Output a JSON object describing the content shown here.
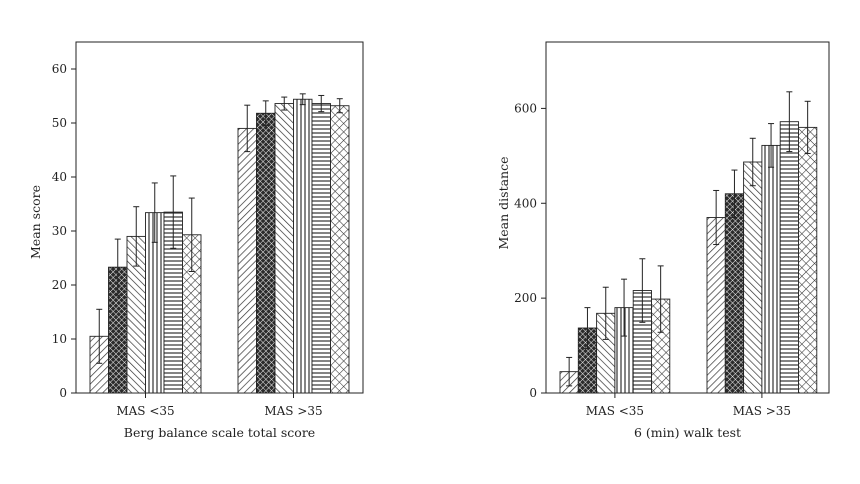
{
  "chart_data": [
    {
      "type": "bar",
      "xlabel": "Berg balance scale total score",
      "ylabel": "Mean score",
      "ylim": [
        0,
        65
      ],
      "yticks": [
        0,
        10,
        20,
        30,
        40,
        50,
        60
      ],
      "grid": false,
      "categories": [
        "MAS <35",
        "MAS >35"
      ],
      "series": [
        {
          "pattern": "diag-right",
          "values": [
            10.5,
            49.0
          ],
          "errors": [
            5.0,
            4.3
          ]
        },
        {
          "pattern": "dense-cross",
          "values": [
            23.3,
            51.8
          ],
          "errors": [
            5.2,
            2.3
          ]
        },
        {
          "pattern": "diag-left",
          "values": [
            29.0,
            53.6
          ],
          "errors": [
            5.5,
            1.2
          ]
        },
        {
          "pattern": "vertical",
          "values": [
            33.4,
            54.4
          ],
          "errors": [
            5.5,
            1.0
          ]
        },
        {
          "pattern": "horizontal",
          "values": [
            33.5,
            53.6
          ],
          "errors": [
            6.7,
            1.5
          ]
        },
        {
          "pattern": "crosshatch",
          "values": [
            29.3,
            53.2
          ],
          "errors": [
            6.8,
            1.3
          ]
        }
      ]
    },
    {
      "type": "bar",
      "xlabel": "6 (min) walk test",
      "ylabel": "Mean distance",
      "ylim": [
        0,
        740
      ],
      "yticks": [
        0,
        200,
        400,
        600
      ],
      "grid": false,
      "categories": [
        "MAS <35",
        "MAS >35"
      ],
      "series": [
        {
          "pattern": "diag-right",
          "values": [
            45,
            370
          ],
          "errors": [
            30,
            57
          ]
        },
        {
          "pattern": "dense-cross",
          "values": [
            137,
            420
          ],
          "errors": [
            43,
            50
          ]
        },
        {
          "pattern": "diag-left",
          "values": [
            168,
            487
          ],
          "errors": [
            55,
            50
          ]
        },
        {
          "pattern": "vertical",
          "values": [
            180,
            522
          ],
          "errors": [
            60,
            46
          ]
        },
        {
          "pattern": "horizontal",
          "values": [
            216,
            572
          ],
          "errors": [
            67,
            63
          ]
        },
        {
          "pattern": "crosshatch",
          "values": [
            198,
            560
          ],
          "errors": [
            70,
            55
          ]
        }
      ]
    }
  ]
}
